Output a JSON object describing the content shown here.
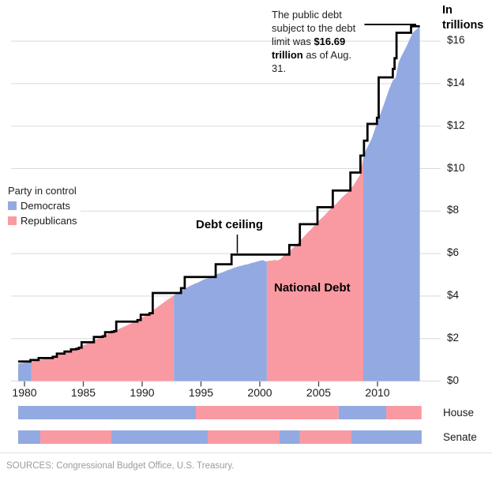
{
  "header": {
    "annotation": {
      "line1": "The public debt",
      "line2": "subject to the debt",
      "line3_pre": "limit was ",
      "line3_bold": "$16.69",
      "line4_bold": "trillion",
      "line4_post": " as of Aug. 31."
    },
    "unit_label": "In trillions"
  },
  "legend": {
    "title": "Party in control",
    "items": [
      {
        "label": "Democrats",
        "color": "#93a9e2"
      },
      {
        "label": "Republicans",
        "color": "#f99aa2"
      }
    ]
  },
  "labels": {
    "debt_ceiling": "Debt ceiling",
    "national_debt": "National Debt",
    "house": "House",
    "senate": "Senate"
  },
  "footer": {
    "sources": "SOURCES: Congressional Budget Office, U.S. Treasury."
  },
  "chart_data": {
    "type": "area",
    "title": "National debt vs. debt ceiling, colored by party in control",
    "unit": "trillions of dollars",
    "x_domain": [
      1979.46,
      2013.6
    ],
    "y_axis": {
      "min": 0,
      "max": 16.8,
      "grid": true,
      "side": "right"
    },
    "colors": {
      "democrat": "#93a9e2",
      "republican": "#f99aa2",
      "ceiling_line": "#000000",
      "gridline": "#d9d9d9",
      "tick": "#444444"
    },
    "y_ticks": [
      {
        "value": 0,
        "label": "$0"
      },
      {
        "value": 2,
        "label": "$2"
      },
      {
        "value": 4,
        "label": "$4"
      },
      {
        "value": 6,
        "label": "$6"
      },
      {
        "value": 8,
        "label": "$8"
      },
      {
        "value": 10,
        "label": "$10"
      },
      {
        "value": 12,
        "label": "$12"
      },
      {
        "value": 14,
        "label": "$14"
      },
      {
        "value": 16,
        "label": "$16"
      }
    ],
    "x_ticks": [
      {
        "value": 1980,
        "label": "1980"
      },
      {
        "value": 1985,
        "label": "1985"
      },
      {
        "value": 1990,
        "label": "1990"
      },
      {
        "value": 1995,
        "label": "1995"
      },
      {
        "value": 2000,
        "label": "2000"
      },
      {
        "value": 2005,
        "label": "2005"
      },
      {
        "value": 2010,
        "label": "2010"
      }
    ],
    "national_debt_series": [
      [
        1979.46,
        0.82
      ],
      [
        1980.0,
        0.86
      ],
      [
        1980.5,
        0.9
      ],
      [
        1981.0,
        0.96
      ],
      [
        1981.5,
        1.01
      ],
      [
        1982.0,
        1.07
      ],
      [
        1982.5,
        1.15
      ],
      [
        1983.0,
        1.26
      ],
      [
        1983.5,
        1.36
      ],
      [
        1984.0,
        1.45
      ],
      [
        1984.5,
        1.55
      ],
      [
        1985.0,
        1.68
      ],
      [
        1985.5,
        1.8
      ],
      [
        1986.0,
        1.93
      ],
      [
        1986.5,
        2.07
      ],
      [
        1987.0,
        2.21
      ],
      [
        1987.5,
        2.32
      ],
      [
        1988.0,
        2.45
      ],
      [
        1988.5,
        2.57
      ],
      [
        1989.0,
        2.7
      ],
      [
        1989.5,
        2.82
      ],
      [
        1990.0,
        2.98
      ],
      [
        1990.5,
        3.15
      ],
      [
        1991.0,
        3.36
      ],
      [
        1991.5,
        3.56
      ],
      [
        1992.0,
        3.77
      ],
      [
        1992.5,
        3.96
      ],
      [
        1993.0,
        4.14
      ],
      [
        1993.25,
        4.22
      ],
      [
        1993.5,
        4.31
      ],
      [
        1993.75,
        4.38
      ],
      [
        1994.0,
        4.46
      ],
      [
        1994.25,
        4.52
      ],
      [
        1994.5,
        4.59
      ],
      [
        1994.75,
        4.64
      ],
      [
        1995.0,
        4.71
      ],
      [
        1995.25,
        4.78
      ],
      [
        1995.5,
        4.83
      ],
      [
        1995.75,
        4.86
      ],
      [
        1996.0,
        4.92
      ],
      [
        1996.25,
        5.01
      ],
      [
        1996.5,
        5.06
      ],
      [
        1996.75,
        5.1
      ],
      [
        1997.0,
        5.16
      ],
      [
        1997.25,
        5.22
      ],
      [
        1997.5,
        5.26
      ],
      [
        1997.75,
        5.32
      ],
      [
        1998.0,
        5.36
      ],
      [
        1998.25,
        5.41
      ],
      [
        1998.5,
        5.44
      ],
      [
        1998.75,
        5.48
      ],
      [
        1999.0,
        5.5
      ],
      [
        1999.25,
        5.55
      ],
      [
        1999.5,
        5.58
      ],
      [
        1999.75,
        5.62
      ],
      [
        2000.0,
        5.66
      ],
      [
        2000.25,
        5.69
      ],
      [
        2000.5,
        5.63
      ],
      [
        2000.75,
        5.66
      ],
      [
        2001.0,
        5.67
      ],
      [
        2001.25,
        5.7
      ],
      [
        2001.5,
        5.68
      ],
      [
        2001.75,
        5.74
      ],
      [
        2002.0,
        5.88
      ],
      [
        2002.5,
        6.1
      ],
      [
        2003.0,
        6.36
      ],
      [
        2003.5,
        6.65
      ],
      [
        2004.0,
        6.95
      ],
      [
        2004.5,
        7.23
      ],
      [
        2005.0,
        7.53
      ],
      [
        2005.5,
        7.8
      ],
      [
        2006.0,
        8.1
      ],
      [
        2006.5,
        8.35
      ],
      [
        2007.0,
        8.65
      ],
      [
        2007.5,
        8.9
      ],
      [
        2008.0,
        9.25
      ],
      [
        2008.5,
        9.7
      ],
      [
        2008.8,
        10.5
      ],
      [
        2009.0,
        10.85
      ],
      [
        2009.5,
        11.4
      ],
      [
        2010.0,
        12.2
      ],
      [
        2010.5,
        12.95
      ],
      [
        2011.0,
        13.75
      ],
      [
        2011.3,
        14.15
      ],
      [
        2011.55,
        14.28
      ],
      [
        2011.8,
        15.0
      ],
      [
        2012.0,
        15.25
      ],
      [
        2012.5,
        15.8
      ],
      [
        2013.0,
        16.4
      ],
      [
        2013.6,
        16.69
      ]
    ],
    "debt_ceiling_steps": [
      [
        1979.46,
        0.92
      ],
      [
        1980.5,
        0.99
      ],
      [
        1981.2,
        1.08
      ],
      [
        1982.4,
        1.143
      ],
      [
        1982.75,
        1.29
      ],
      [
        1983.4,
        1.39
      ],
      [
        1983.95,
        1.49
      ],
      [
        1984.4,
        1.52
      ],
      [
        1984.62,
        1.573
      ],
      [
        1984.85,
        1.824
      ],
      [
        1985.9,
        2.079
      ],
      [
        1986.65,
        2.111
      ],
      [
        1986.85,
        2.3
      ],
      [
        1987.4,
        2.32
      ],
      [
        1987.62,
        2.352
      ],
      [
        1987.8,
        2.8
      ],
      [
        1989.6,
        2.87
      ],
      [
        1989.88,
        3.123
      ],
      [
        1990.62,
        3.195
      ],
      [
        1990.9,
        4.145
      ],
      [
        1993.3,
        4.37
      ],
      [
        1993.62,
        4.9
      ],
      [
        1996.25,
        5.5
      ],
      [
        1997.6,
        5.95
      ],
      [
        2002.5,
        6.4
      ],
      [
        2003.4,
        7.384
      ],
      [
        2004.9,
        8.184
      ],
      [
        2006.2,
        8.965
      ],
      [
        2007.7,
        9.815
      ],
      [
        2008.55,
        10.615
      ],
      [
        2008.85,
        11.315
      ],
      [
        2009.15,
        12.104
      ],
      [
        2009.95,
        12.394
      ],
      [
        2010.1,
        14.294
      ],
      [
        2011.3,
        14.694
      ],
      [
        2011.45,
        15.194
      ],
      [
        2011.62,
        16.394
      ],
      [
        2012.85,
        16.699
      ]
    ],
    "debt_ceiling_end_year": 2013.6,
    "president_eras": [
      {
        "start": 1979.46,
        "end": 1980.6,
        "party": "D"
      },
      {
        "start": 1980.6,
        "end": 1992.7,
        "party": "R"
      },
      {
        "start": 1992.7,
        "end": 2000.6,
        "party": "D"
      },
      {
        "start": 2000.6,
        "end": 2008.79,
        "party": "R"
      },
      {
        "start": 2008.79,
        "end": 2013.6,
        "party": "D"
      }
    ],
    "house_segments": [
      {
        "start": 1979.46,
        "end": 1994.56,
        "party": "D"
      },
      {
        "start": 1994.56,
        "end": 2006.7,
        "party": "R"
      },
      {
        "start": 2006.7,
        "end": 2010.74,
        "party": "D"
      },
      {
        "start": 2010.74,
        "end": 2013.75,
        "party": "R"
      }
    ],
    "senate_segments": [
      {
        "start": 1979.46,
        "end": 1981.34,
        "party": "D"
      },
      {
        "start": 1981.34,
        "end": 1987.38,
        "party": "R"
      },
      {
        "start": 1987.38,
        "end": 1995.57,
        "party": "D"
      },
      {
        "start": 1995.57,
        "end": 2001.68,
        "party": "R"
      },
      {
        "start": 2001.68,
        "end": 2003.42,
        "party": "D"
      },
      {
        "start": 2003.42,
        "end": 2007.78,
        "party": "R"
      },
      {
        "start": 2007.78,
        "end": 2013.75,
        "party": "D"
      }
    ]
  }
}
